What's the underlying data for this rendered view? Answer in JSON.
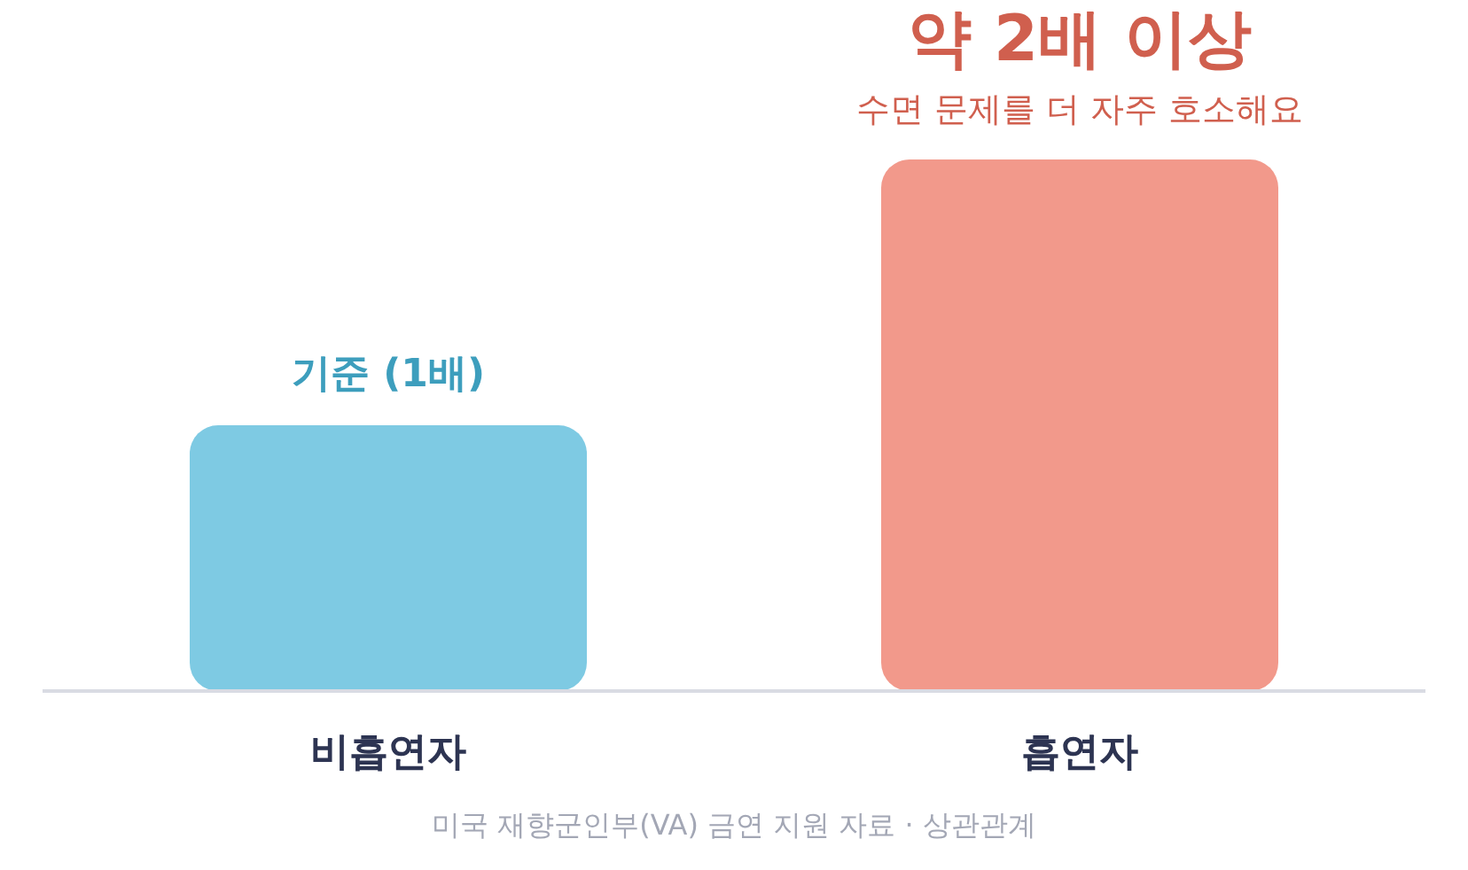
{
  "chart_data": {
    "type": "bar",
    "ylim": [
      0,
      2
    ],
    "tick_labels": "x",
    "categories": [
      "비흡연자",
      "흡연자"
    ],
    "values": [
      1,
      2
    ],
    "colors": [
      "#7ecae3",
      "#f2998b"
    ],
    "value_labels": [
      "기준 (1배)",
      "약 2배 이상"
    ],
    "annotations": [
      {
        "text": "수면 문제를 더 자주 호소해요",
        "x": "흡연자",
        "y": 2
      },
      "미국 재향군인부(VA) 금연 지원 자료 · 상관관계"
    ],
    "grid": false,
    "legend": false
  }
}
